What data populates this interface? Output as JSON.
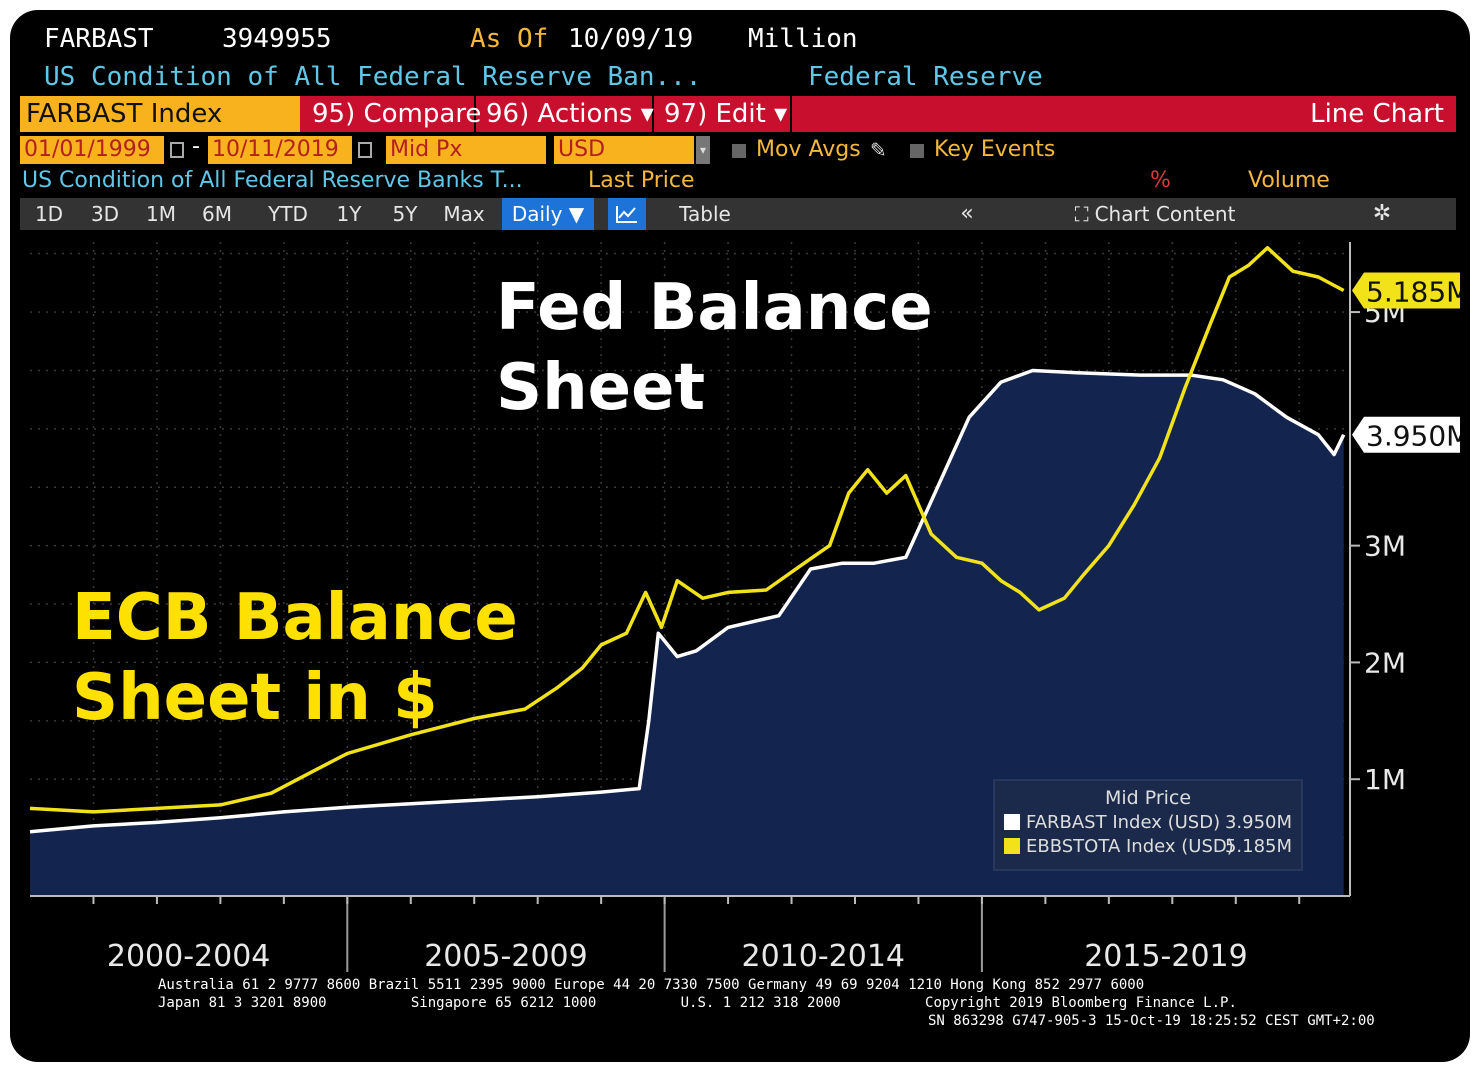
{
  "header": {
    "ticker": "FARBAST",
    "value": "3949955",
    "as_of_label": "As Of",
    "as_of_date": "10/09/19",
    "units": "Million",
    "description": "US Condition of All Federal Reserve Ban...",
    "source": "Federal Reserve"
  },
  "command_bar": {
    "security": "FARBAST Index",
    "compare": "95) Compare",
    "actions": "96) Actions ▾",
    "edit": "97) Edit ▾",
    "chart_type": "Line Chart"
  },
  "params": {
    "start_date": "01/01/1999",
    "end_date": "10/11/2019",
    "price_field": "Mid Px",
    "currency": "USD",
    "mov_avgs": "Mov Avgs",
    "key_events": "Key Events"
  },
  "legend_row": {
    "series_desc": "US Condition of All Federal Reserve Banks T...",
    "last_price": "Last Price",
    "percent": "%",
    "volume": "Volume"
  },
  "toolbar": {
    "periods": [
      "1D",
      "3D",
      "1M",
      "6M",
      "YTD",
      "1Y",
      "5Y",
      "Max"
    ],
    "frequency": "Daily ▼",
    "table": "Table",
    "collapse": "«",
    "chart_content": "Chart Content"
  },
  "annotations": {
    "fed_line1": "Fed Balance",
    "fed_line2": "Sheet",
    "ecb_line1": "ECB Balance",
    "ecb_line2": "Sheet in $"
  },
  "colors": {
    "fed": "#ffffff",
    "fed_fill": "#13244f",
    "ecb": "#f2e21a",
    "background": "#000000",
    "accent_red": "#c8102e",
    "accent_amber": "#f7b21e"
  },
  "chart_data": {
    "type": "line",
    "x_range": [
      1999.0,
      2019.8
    ],
    "ylim": [
      0,
      5.6
    ],
    "y_ticks": [
      {
        "value": 1,
        "label": "1M"
      },
      {
        "value": 2,
        "label": "2M"
      },
      {
        "value": 3,
        "label": "3M"
      },
      {
        "value": 5,
        "label": "5M"
      }
    ],
    "x_groups": [
      {
        "label": "2000-2004",
        "start": 1999.0,
        "end": 2004.0
      },
      {
        "label": "2005-2009",
        "start": 2004.0,
        "end": 2009.0
      },
      {
        "label": "2010-2014",
        "start": 2009.0,
        "end": 2014.0
      },
      {
        "label": "2015-2019",
        "start": 2014.0,
        "end": 2019.8
      }
    ],
    "legend_title": "Mid Price",
    "series": [
      {
        "name": "FARBAST Index (USD)",
        "last_value_label": "3.950M",
        "last_value": 3.95,
        "style": "area",
        "x": [
          1999.0,
          2000.0,
          2001.0,
          2002.0,
          2003.0,
          2004.0,
          2005.0,
          2006.0,
          2007.0,
          2008.0,
          2008.6,
          2008.75,
          2008.9,
          2009.2,
          2009.5,
          2010.0,
          2010.8,
          2011.3,
          2011.8,
          2012.3,
          2012.8,
          2013.3,
          2013.8,
          2014.3,
          2014.8,
          2015.5,
          2016.5,
          2017.3,
          2017.8,
          2018.3,
          2018.8,
          2019.3,
          2019.55,
          2019.7
        ],
        "y": [
          0.55,
          0.6,
          0.63,
          0.67,
          0.72,
          0.76,
          0.79,
          0.82,
          0.85,
          0.89,
          0.92,
          1.5,
          2.25,
          2.05,
          2.1,
          2.3,
          2.4,
          2.8,
          2.85,
          2.85,
          2.9,
          3.5,
          4.1,
          4.4,
          4.5,
          4.48,
          4.46,
          4.46,
          4.42,
          4.3,
          4.1,
          3.95,
          3.78,
          3.95
        ]
      },
      {
        "name": "EBBSTOTA Index (USD)",
        "last_value_label": "5.185M",
        "last_value": 5.185,
        "style": "line",
        "x": [
          1999.0,
          2000.0,
          2001.0,
          2002.0,
          2002.8,
          2003.5,
          2004.0,
          2005.0,
          2006.0,
          2006.8,
          2007.3,
          2007.7,
          2008.0,
          2008.4,
          2008.7,
          2008.95,
          2009.2,
          2009.6,
          2010.0,
          2010.6,
          2011.2,
          2011.6,
          2011.9,
          2012.2,
          2012.5,
          2012.8,
          2013.2,
          2013.6,
          2014.0,
          2014.3,
          2014.6,
          2014.9,
          2015.3,
          2015.6,
          2016.0,
          2016.4,
          2016.8,
          2017.2,
          2017.6,
          2017.9,
          2018.2,
          2018.5,
          2018.9,
          2019.3,
          2019.7
        ],
        "y": [
          0.75,
          0.72,
          0.75,
          0.78,
          0.88,
          1.08,
          1.22,
          1.38,
          1.52,
          1.6,
          1.78,
          1.95,
          2.15,
          2.25,
          2.6,
          2.3,
          2.7,
          2.55,
          2.6,
          2.62,
          2.85,
          3.0,
          3.45,
          3.65,
          3.45,
          3.6,
          3.1,
          2.9,
          2.85,
          2.7,
          2.6,
          2.45,
          2.55,
          2.75,
          3.0,
          3.35,
          3.75,
          4.35,
          4.9,
          5.3,
          5.4,
          5.55,
          5.35,
          5.3,
          5.185
        ]
      }
    ]
  },
  "footer": {
    "line1": "Australia 61 2 9777 8600 Brazil 5511 2395 9000 Europe 44 20 7330 7500 Germany 49 69 9204 1210 Hong Kong 852 2977 6000",
    "line2": "Japan 81 3 3201 8900          Singapore 65 6212 1000          U.S. 1 212 318 2000          Copyright 2019 Bloomberg Finance L.P.",
    "line3": "SN 863298 G747-905-3 15-Oct-19 18:25:52 CEST GMT+2:00"
  }
}
